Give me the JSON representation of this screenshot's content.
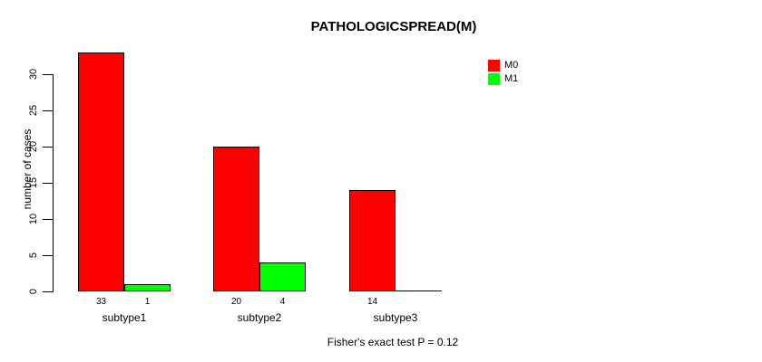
{
  "title": "PATHOLOGICSPREAD(M)",
  "y_axis": {
    "label": "number of cases",
    "ticks": [
      0,
      5,
      10,
      15,
      20,
      25,
      30
    ]
  },
  "footer": "Fisher's exact test P = 0.12",
  "legend": {
    "items": [
      {
        "label": "M0",
        "color": "#ff0000"
      },
      {
        "label": "M1",
        "color": "#00ff00"
      }
    ]
  },
  "chart_data": {
    "type": "bar",
    "title": "PATHOLOGICSPREAD(M)",
    "xlabel": "",
    "ylabel": "number of cases",
    "categories": [
      "subtype1",
      "subtype2",
      "subtype3"
    ],
    "series": [
      {
        "name": "M0",
        "color": "#ff0000",
        "values": [
          33,
          20,
          14
        ]
      },
      {
        "name": "M1",
        "color": "#00ff00",
        "values": [
          1,
          4,
          0
        ]
      }
    ],
    "bar_value_labels": [
      [
        "33",
        "1"
      ],
      [
        "20",
        "4"
      ],
      [
        "14",
        ""
      ]
    ],
    "yticks": [
      0,
      5,
      10,
      15,
      20,
      25,
      30
    ],
    "ylim": [
      0,
      33
    ],
    "grid": false,
    "bar_border_color": "#000000",
    "legend_position": "top-right",
    "annotation": "Fisher's exact test P = 0.12"
  }
}
